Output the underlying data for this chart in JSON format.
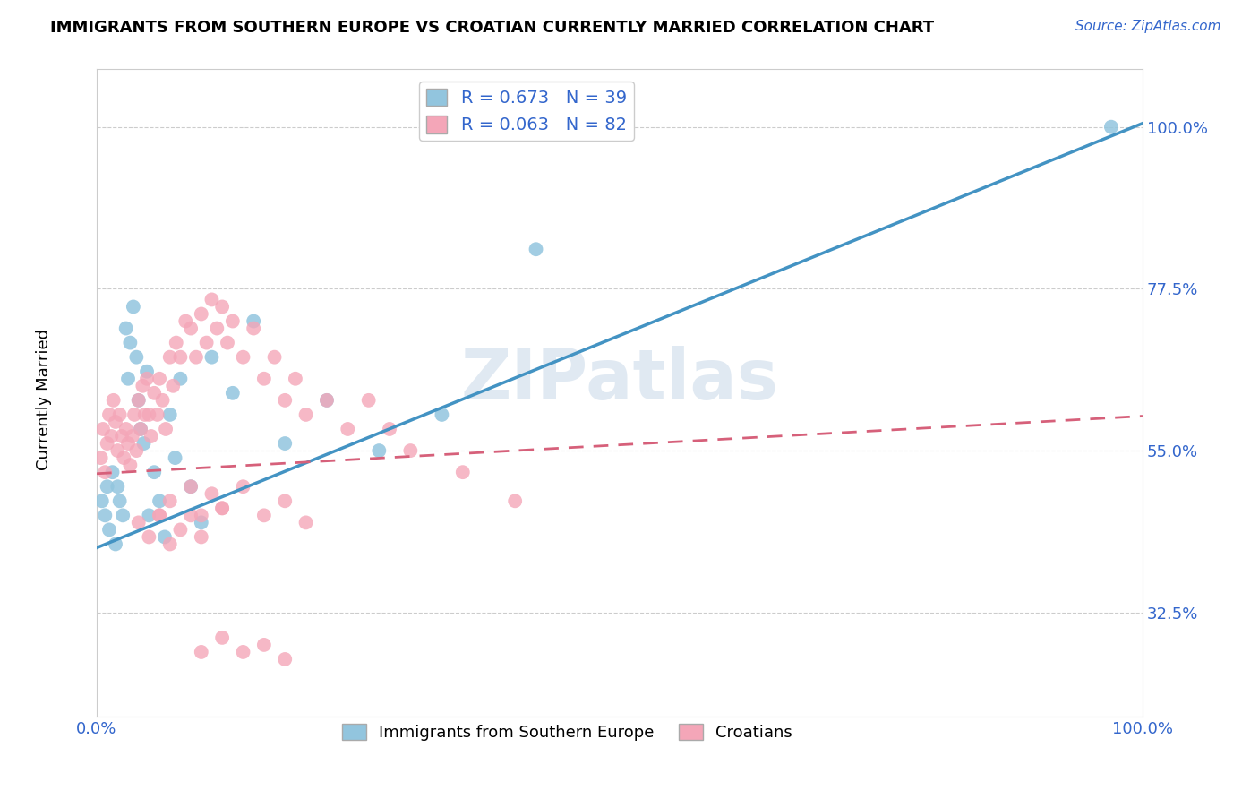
{
  "title": "IMMIGRANTS FROM SOUTHERN EUROPE VS CROATIAN CURRENTLY MARRIED CORRELATION CHART",
  "source_text": "Source: ZipAtlas.com",
  "ylabel": "Currently Married",
  "xlim": [
    0.0,
    1.0
  ],
  "ylim": [
    0.18,
    1.08
  ],
  "yticks": [
    0.325,
    0.55,
    0.775,
    1.0
  ],
  "ytick_labels": [
    "32.5%",
    "55.0%",
    "77.5%",
    "100.0%"
  ],
  "xticks": [
    0.0,
    0.25,
    0.5,
    0.75,
    1.0
  ],
  "xtick_labels": [
    "0.0%",
    "",
    "",
    "",
    "100.0%"
  ],
  "blue_R": 0.673,
  "blue_N": 39,
  "pink_R": 0.063,
  "pink_N": 82,
  "blue_color": "#92c5de",
  "pink_color": "#f4a6b8",
  "blue_line_color": "#4393c3",
  "pink_line_color": "#d6607a",
  "watermark": "ZIPatlas",
  "legend_label_blue": "Immigrants from Southern Europe",
  "legend_label_pink": "Croatians",
  "blue_line_y0": 0.415,
  "blue_line_y1": 1.005,
  "pink_line_y0": 0.518,
  "pink_line_y1": 0.598,
  "blue_scatter_x": [
    0.005,
    0.008,
    0.01,
    0.012,
    0.015,
    0.018,
    0.02,
    0.022,
    0.025,
    0.028,
    0.03,
    0.032,
    0.035,
    0.038,
    0.04,
    0.042,
    0.045,
    0.048,
    0.05,
    0.055,
    0.06,
    0.065,
    0.07,
    0.075,
    0.08,
    0.09,
    0.1,
    0.11,
    0.13,
    0.15,
    0.18,
    0.22,
    0.27,
    0.33,
    0.42,
    0.97
  ],
  "blue_scatter_y": [
    0.48,
    0.46,
    0.5,
    0.44,
    0.52,
    0.42,
    0.5,
    0.48,
    0.46,
    0.72,
    0.65,
    0.7,
    0.75,
    0.68,
    0.62,
    0.58,
    0.56,
    0.66,
    0.46,
    0.52,
    0.48,
    0.43,
    0.6,
    0.54,
    0.65,
    0.5,
    0.45,
    0.68,
    0.63,
    0.73,
    0.56,
    0.62,
    0.55,
    0.6,
    0.83,
    1.0
  ],
  "pink_scatter_x": [
    0.004,
    0.006,
    0.008,
    0.01,
    0.012,
    0.014,
    0.016,
    0.018,
    0.02,
    0.022,
    0.024,
    0.026,
    0.028,
    0.03,
    0.032,
    0.034,
    0.036,
    0.038,
    0.04,
    0.042,
    0.044,
    0.046,
    0.048,
    0.05,
    0.052,
    0.055,
    0.058,
    0.06,
    0.063,
    0.066,
    0.07,
    0.073,
    0.076,
    0.08,
    0.085,
    0.09,
    0.095,
    0.1,
    0.105,
    0.11,
    0.115,
    0.12,
    0.125,
    0.13,
    0.14,
    0.15,
    0.16,
    0.17,
    0.18,
    0.19,
    0.2,
    0.22,
    0.24,
    0.26,
    0.28,
    0.3,
    0.35,
    0.4,
    0.06,
    0.07,
    0.09,
    0.1,
    0.11,
    0.12,
    0.04,
    0.05,
    0.06,
    0.07,
    0.08,
    0.09,
    0.1,
    0.12,
    0.14,
    0.16,
    0.18,
    0.2,
    0.1,
    0.12,
    0.14,
    0.16,
    0.18
  ],
  "pink_scatter_y": [
    0.54,
    0.58,
    0.52,
    0.56,
    0.6,
    0.57,
    0.62,
    0.59,
    0.55,
    0.6,
    0.57,
    0.54,
    0.58,
    0.56,
    0.53,
    0.57,
    0.6,
    0.55,
    0.62,
    0.58,
    0.64,
    0.6,
    0.65,
    0.6,
    0.57,
    0.63,
    0.6,
    0.65,
    0.62,
    0.58,
    0.68,
    0.64,
    0.7,
    0.68,
    0.73,
    0.72,
    0.68,
    0.74,
    0.7,
    0.76,
    0.72,
    0.75,
    0.7,
    0.73,
    0.68,
    0.72,
    0.65,
    0.68,
    0.62,
    0.65,
    0.6,
    0.62,
    0.58,
    0.62,
    0.58,
    0.55,
    0.52,
    0.48,
    0.46,
    0.48,
    0.5,
    0.46,
    0.49,
    0.47,
    0.45,
    0.43,
    0.46,
    0.42,
    0.44,
    0.46,
    0.43,
    0.47,
    0.5,
    0.46,
    0.48,
    0.45,
    0.27,
    0.29,
    0.27,
    0.28,
    0.26
  ]
}
